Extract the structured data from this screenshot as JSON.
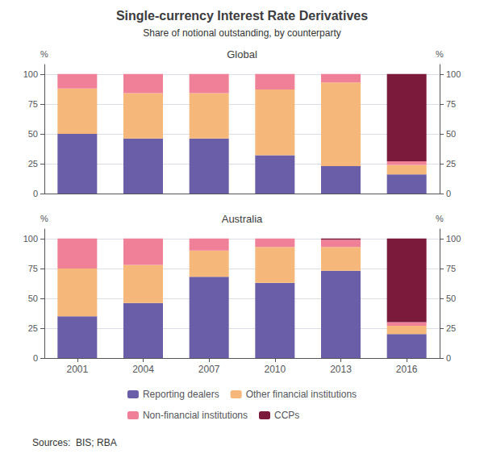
{
  "title": "Single-currency Interest Rate Derivatives",
  "subtitle": "Share of notional outstanding, by counterparty",
  "annotations": [
    "Sources:  BIS; RBA"
  ],
  "chart_data": [
    {
      "type": "bar",
      "title": "Global",
      "stacked": true,
      "grid": true,
      "tick_labels": "y",
      "categories": [
        2001,
        2004,
        2007,
        2010,
        2013,
        2016
      ],
      "ylabel": "%",
      "y2label": "%",
      "ylim": [
        0,
        108
      ],
      "yticks": [
        0,
        25,
        50,
        75,
        100
      ],
      "y2lim": [
        0,
        108
      ],
      "y2ticks": [
        0,
        25,
        50,
        75,
        100
      ],
      "series": [
        {
          "name": "Reporting dealers",
          "color": "#6B5EA8",
          "values": [
            50,
            46,
            46,
            32,
            23,
            16
          ]
        },
        {
          "name": "Other financial institutions",
          "color": "#F5B87A",
          "values": [
            38,
            38,
            38,
            55,
            70,
            8
          ]
        },
        {
          "name": "Non-financial institutions",
          "color": "#F08098",
          "values": [
            12,
            16,
            16,
            13,
            7,
            3
          ]
        },
        {
          "name": "CCPs",
          "color": "#7B1A3A",
          "values": [
            0,
            0,
            0,
            0,
            0,
            73
          ]
        }
      ]
    },
    {
      "type": "bar",
      "title": "Australia",
      "stacked": true,
      "grid": true,
      "legend": "bottom",
      "categories": [
        2001,
        2004,
        2007,
        2010,
        2013,
        2016
      ],
      "ylabel": "%",
      "y2label": "%",
      "ylim": [
        0,
        108
      ],
      "yticks": [
        0,
        25,
        50,
        75,
        100
      ],
      "y2lim": [
        0,
        108
      ],
      "y2ticks": [
        0,
        25,
        50,
        75,
        100
      ],
      "series": [
        {
          "name": "Reporting dealers",
          "color": "#6B5EA8",
          "values": [
            35,
            46,
            68,
            63,
            73,
            20
          ]
        },
        {
          "name": "Other financial institutions",
          "color": "#F5B87A",
          "values": [
            40,
            32,
            22,
            30,
            20,
            7
          ]
        },
        {
          "name": "Non-financial institutions",
          "color": "#F08098",
          "values": [
            25,
            22,
            10,
            7,
            6,
            3
          ]
        },
        {
          "name": "CCPs",
          "color": "#7B1A3A",
          "values": [
            0,
            0,
            0,
            0,
            1,
            70
          ]
        }
      ]
    }
  ]
}
